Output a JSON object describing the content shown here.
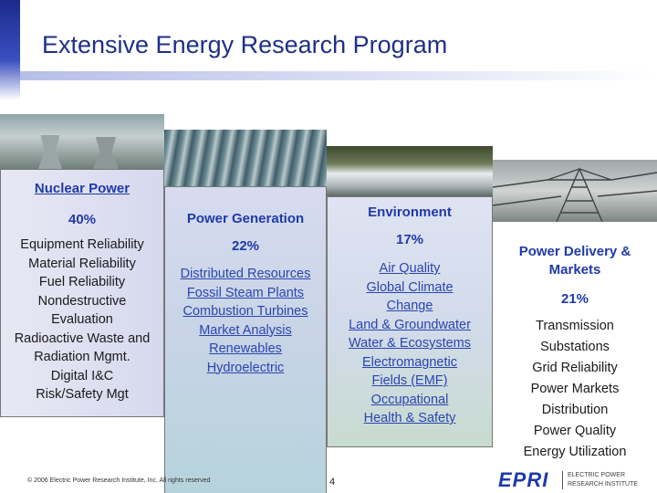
{
  "title": "Extensive Energy Research Program",
  "panels": {
    "nuclear": {
      "header": "Nuclear Power",
      "percent": "40%",
      "items": [
        "Equipment Reliability",
        "Material Reliability",
        "Fuel Reliability",
        "Nondestructive",
        "Evaluation",
        "Radioactive Waste and",
        "Radiation Mgmt.",
        "Digital I&C",
        "Risk/Safety Mgt"
      ]
    },
    "generation": {
      "header": "Power Generation",
      "percent": "22%",
      "items": [
        "Distributed Resources",
        "Fossil Steam Plants",
        "Combustion Turbines",
        "Market Analysis",
        "Renewables",
        "Hydroelectric"
      ]
    },
    "environment": {
      "header": "Environment",
      "percent": "17%",
      "items": [
        "Air Quality",
        "Global Climate",
        "Change",
        "Land & Groundwater",
        "Water & Ecosystems",
        "Electromagnetic",
        "Fields (EMF)",
        "Occupational",
        "Health & Safety"
      ]
    },
    "delivery": {
      "header_line1": "Power Delivery &",
      "header_line2": "Markets",
      "percent": "21%",
      "items": [
        "Transmission",
        "Substations",
        "Grid Reliability",
        "Power Markets",
        "Distribution",
        "Power Quality",
        "Energy Utilization"
      ]
    }
  },
  "footer": {
    "copyright": "© 2006 Electric Power Research Institute, Inc. All rights reserved",
    "page_number": "4",
    "logo_text": "EPRI",
    "logo_line1": "ELECTRIC POWER",
    "logo_line2": "RESEARCH INSTITUTE"
  },
  "colors": {
    "title": "#1f2f86",
    "header_blue": "#1f3aa8",
    "text_blue": "#2a45b0"
  }
}
